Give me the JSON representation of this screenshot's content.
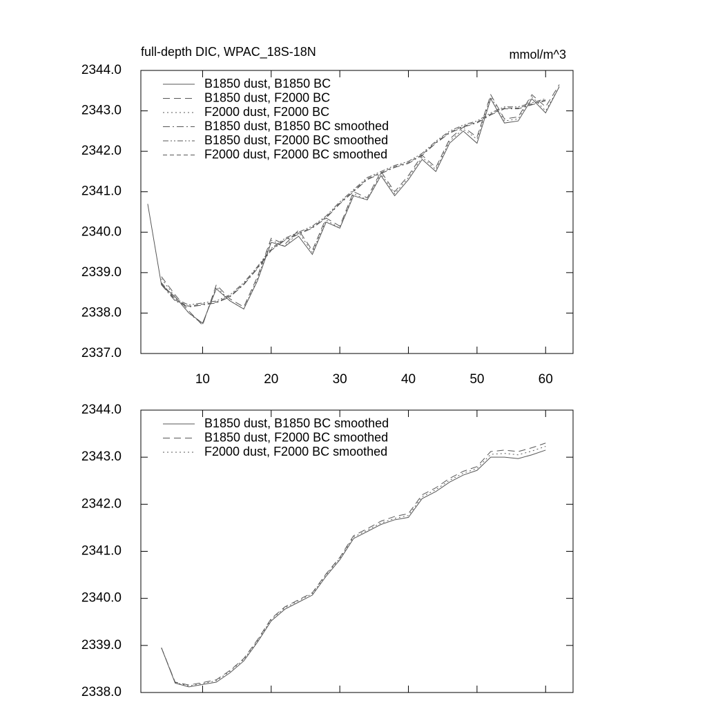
{
  "chart_data": [
    {
      "type": "line",
      "title": "full-depth DIC, WPAC_18S-18N",
      "right_title": "mmol/m^3",
      "x": [
        2,
        4,
        6,
        8,
        10,
        12,
        14,
        16,
        18,
        20,
        22,
        24,
        26,
        28,
        30,
        32,
        34,
        36,
        38,
        40,
        42,
        44,
        46,
        48,
        50,
        52,
        54,
        56,
        58,
        60,
        62
      ],
      "xlim": [
        1,
        64
      ],
      "xticks": [
        10,
        20,
        30,
        40,
        50,
        60
      ],
      "ylim": [
        2337,
        2344
      ],
      "yticks": [
        {
          "value": 2337,
          "label": "2337.0"
        },
        {
          "value": 2338,
          "label": "2338.0"
        },
        {
          "value": 2339,
          "label": "2339.0"
        },
        {
          "value": 2340,
          "label": "2340.0"
        },
        {
          "value": 2341,
          "label": "2341.0"
        },
        {
          "value": 2342,
          "label": "2342.0"
        },
        {
          "value": 2343,
          "label": "2343.0"
        },
        {
          "value": 2344,
          "label": "2344.0"
        }
      ],
      "legend": "upper left",
      "series": [
        {
          "name": "B1850 dust, B1850 BC",
          "color": "#555555",
          "dash": "solid",
          "values": [
            2340.7,
            2338.7,
            2338.4,
            2338.0,
            2337.75,
            2338.6,
            2338.3,
            2338.1,
            2338.8,
            2339.75,
            2339.65,
            2339.9,
            2339.45,
            2340.25,
            2340.1,
            2340.9,
            2340.8,
            2341.4,
            2340.9,
            2341.3,
            2341.8,
            2341.5,
            2342.2,
            2342.5,
            2342.2,
            2343.3,
            2342.7,
            2342.75,
            2343.3,
            2342.95,
            2343.6
          ]
        },
        {
          "name": "B1850 dust, F2000 BC",
          "color": "#555555",
          "dash": "dashed",
          "values": [
            null,
            2338.9,
            2338.45,
            2338.05,
            2337.7,
            2338.7,
            2338.35,
            2338.15,
            2338.9,
            2339.85,
            2339.7,
            2340.05,
            2339.55,
            2340.35,
            2340.15,
            2341.0,
            2340.85,
            2341.5,
            2341.0,
            2341.4,
            2341.9,
            2341.6,
            2342.3,
            2342.6,
            2342.35,
            2343.4,
            2342.8,
            2342.85,
            2343.4,
            2343.1,
            2343.65
          ]
        },
        {
          "name": "F2000 dust, F2000 BC",
          "color": "#555555",
          "dash": "dotted",
          "values": [
            null,
            2338.85,
            2338.4,
            2338.0,
            2337.72,
            2338.65,
            2338.3,
            2338.1,
            2338.85,
            2339.8,
            2339.65,
            2340.0,
            2339.5,
            2340.3,
            2340.1,
            2340.95,
            2340.8,
            2341.45,
            2340.95,
            2341.35,
            2341.85,
            2341.55,
            2342.25,
            2342.55,
            2342.3,
            2343.35,
            2342.75,
            2342.8,
            2343.35,
            2343.0,
            2343.6
          ]
        },
        {
          "name": "B1850 dust, B1850 BC smoothed",
          "color": "#555555",
          "dash": "dashdot",
          "values": [
            null,
            2338.7,
            2338.3,
            2338.15,
            2338.2,
            2338.25,
            2338.4,
            2338.7,
            2339.1,
            2339.55,
            2339.8,
            2339.95,
            2340.1,
            2340.35,
            2340.7,
            2341.0,
            2341.3,
            2341.45,
            2341.6,
            2341.7,
            2341.9,
            2342.2,
            2342.45,
            2342.6,
            2342.7,
            2342.9,
            2343.05,
            2343.05,
            2343.15,
            2343.25,
            null
          ]
        },
        {
          "name": "B1850 dust, F2000 BC smoothed",
          "color": "#555555",
          "dash": "dashdotdot",
          "values": [
            null,
            2338.75,
            2338.35,
            2338.2,
            2338.25,
            2338.3,
            2338.45,
            2338.75,
            2339.15,
            2339.6,
            2339.85,
            2340.0,
            2340.15,
            2340.4,
            2340.75,
            2341.05,
            2341.35,
            2341.5,
            2341.65,
            2341.75,
            2341.95,
            2342.25,
            2342.5,
            2342.65,
            2342.75,
            2342.95,
            2343.1,
            2343.1,
            2343.2,
            2343.3,
            null
          ]
        },
        {
          "name": "F2000 dust, F2000 BC smoothed",
          "color": "#555555",
          "dash": "longdash",
          "values": [
            null,
            2338.72,
            2338.32,
            2338.17,
            2338.22,
            2338.27,
            2338.42,
            2338.72,
            2339.12,
            2339.57,
            2339.82,
            2339.97,
            2340.12,
            2340.37,
            2340.72,
            2341.02,
            2341.32,
            2341.47,
            2341.62,
            2341.72,
            2341.92,
            2342.22,
            2342.47,
            2342.62,
            2342.72,
            2342.92,
            2343.07,
            2343.07,
            2343.17,
            2343.27,
            null
          ]
        }
      ]
    },
    {
      "type": "line",
      "x": [
        4,
        6,
        8,
        10,
        12,
        14,
        16,
        18,
        20,
        22,
        24,
        26,
        28,
        30,
        32,
        34,
        36,
        38,
        40,
        42,
        44,
        46,
        48,
        50,
        52,
        54,
        56,
        58,
        60
      ],
      "xlim": [
        1,
        64
      ],
      "xticks": [
        10,
        20,
        30,
        40,
        50,
        60
      ],
      "ylim": [
        2338,
        2344
      ],
      "yticks": [
        {
          "value": 2338,
          "label": "2338.0"
        },
        {
          "value": 2339,
          "label": "2339.0"
        },
        {
          "value": 2340,
          "label": "2340.0"
        },
        {
          "value": 2341,
          "label": "2341.0"
        },
        {
          "value": 2342,
          "label": "2342.0"
        },
        {
          "value": 2343,
          "label": "2343.0"
        },
        {
          "value": 2344,
          "label": "2344.0"
        }
      ],
      "legend": "upper left",
      "series": [
        {
          "name": "B1850 dust, B1850 BC smoothed",
          "color": "#555555",
          "dash": "solid",
          "values": [
            2338.95,
            2338.2,
            2338.12,
            2338.17,
            2338.22,
            2338.42,
            2338.67,
            2339.07,
            2339.52,
            2339.77,
            2339.92,
            2340.07,
            2340.47,
            2340.82,
            2341.27,
            2341.42,
            2341.57,
            2341.67,
            2341.72,
            2342.12,
            2342.27,
            2342.47,
            2342.62,
            2342.72,
            2343.0,
            2343.0,
            2342.97,
            2343.05,
            2343.15
          ]
        },
        {
          "name": "B1850 dust, F2000 BC smoothed",
          "color": "#555555",
          "dash": "dashed",
          "values": [
            2338.95,
            2338.22,
            2338.16,
            2338.21,
            2338.27,
            2338.47,
            2338.72,
            2339.12,
            2339.57,
            2339.82,
            2339.97,
            2340.12,
            2340.52,
            2340.87,
            2341.33,
            2341.48,
            2341.64,
            2341.74,
            2341.8,
            2342.2,
            2342.35,
            2342.55,
            2342.7,
            2342.8,
            2343.12,
            2343.15,
            2343.12,
            2343.2,
            2343.3
          ]
        },
        {
          "name": "F2000 dust, F2000 BC smoothed",
          "color": "#555555",
          "dash": "dotted",
          "values": [
            2338.95,
            2338.21,
            2338.14,
            2338.19,
            2338.25,
            2338.45,
            2338.7,
            2339.1,
            2339.55,
            2339.8,
            2339.95,
            2340.1,
            2340.5,
            2340.85,
            2341.3,
            2341.45,
            2341.6,
            2341.7,
            2341.76,
            2342.16,
            2342.31,
            2342.51,
            2342.66,
            2342.76,
            2343.06,
            2343.08,
            2343.05,
            2343.13,
            2343.23
          ]
        }
      ]
    }
  ]
}
